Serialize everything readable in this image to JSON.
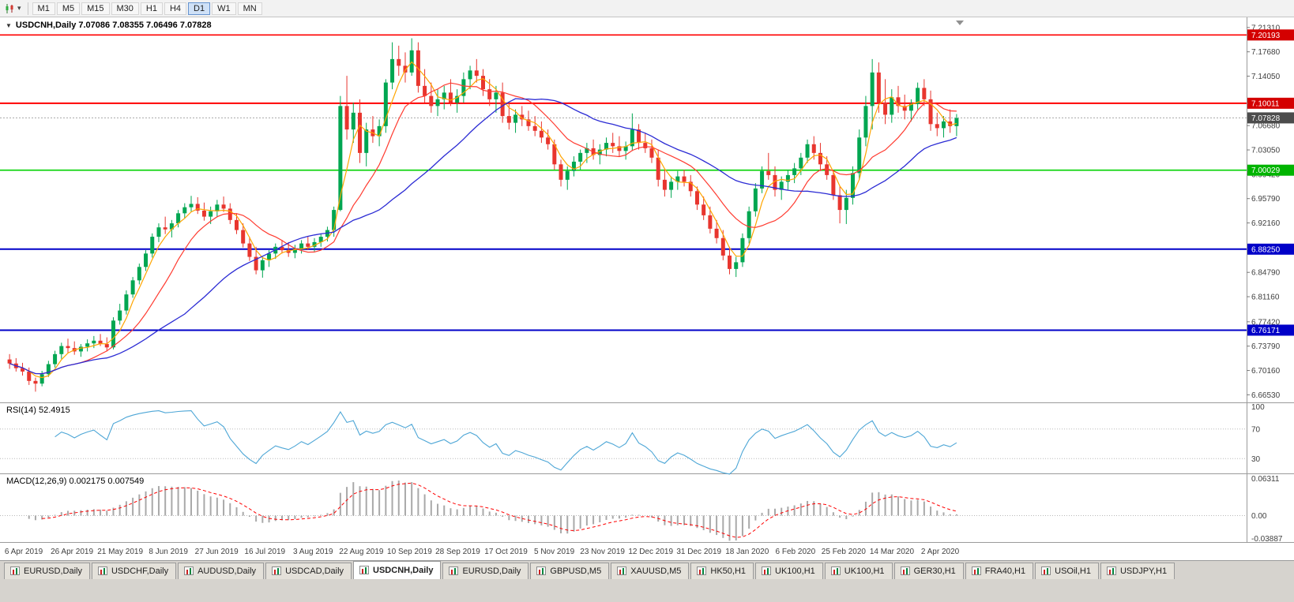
{
  "toolbar": {
    "timeframes": [
      {
        "label": "M1",
        "active": false
      },
      {
        "label": "M5",
        "active": false
      },
      {
        "label": "M15",
        "active": false
      },
      {
        "label": "M30",
        "active": false
      },
      {
        "label": "H1",
        "active": false
      },
      {
        "label": "H4",
        "active": false
      },
      {
        "label": "D1",
        "active": true
      },
      {
        "label": "W1",
        "active": false
      },
      {
        "label": "MN",
        "active": false
      }
    ]
  },
  "chart": {
    "title": "USDCNH,Daily 7.07086 7.08355 7.06496 7.07828",
    "symbol": "USDCNH",
    "period": "Daily"
  },
  "chart_data": {
    "type": "candlestick",
    "symbol": "USDCNH",
    "timeframe": "Daily",
    "last_bar": {
      "open": "7.07086",
      "high": "7.08355",
      "low": "7.06496",
      "close": "7.07828"
    },
    "colors": {
      "up": "#00A651",
      "down": "#E8352E",
      "axis_text": "#3f3f3f",
      "background": "#ffffff"
    },
    "y_ticks": [
      "7.21310",
      "7.17680",
      "7.14050",
      "7.06680",
      "7.03050",
      "6.99420",
      "6.95790",
      "6.92160",
      "6.84790",
      "6.81160",
      "6.77420",
      "6.73790",
      "6.70160",
      "6.66530"
    ],
    "y_range": [
      6.654,
      7.2235
    ],
    "horizontal_lines": [
      {
        "price": 7.20193,
        "color": "#FF0000",
        "width": 1.6,
        "style": "solid",
        "badge": "7.20193",
        "badge_color": "#D40000"
      },
      {
        "price": 7.10011,
        "color": "#FF0000",
        "width": 2,
        "style": "solid",
        "badge": "7.10011",
        "badge_color": "#D40000"
      },
      {
        "price": 7.07828,
        "color": "#a8a8a8",
        "width": 1,
        "style": "dotted",
        "badge": "7.07828",
        "badge_color": "#4c4c4c"
      },
      {
        "price": 7.00029,
        "color": "#00D200",
        "width": 1.6,
        "style": "solid",
        "badge": "7.00029",
        "badge_color": "#00B400"
      },
      {
        "price": 6.8825,
        "color": "#0000C8",
        "width": 2,
        "style": "solid",
        "badge": "6.88250",
        "badge_color": "#0000C8"
      },
      {
        "price": 6.76171,
        "color": "#0000C8",
        "width": 2,
        "style": "solid",
        "badge": "6.76171",
        "badge_color": "#0000C8"
      }
    ],
    "x_tick_labels": [
      "6 Apr 2019",
      "26 Apr 2019",
      "21 May 2019",
      "8 Jun 2019",
      "27 Jun 2019",
      "16 Jul 2019",
      "3 Aug 2019",
      "22 Aug 2019",
      "10 Sep 2019",
      "28 Sep 2019",
      "17 Oct 2019",
      "5 Nov 2019",
      "23 Nov 2019",
      "12 Dec 2019",
      "31 Dec 2019",
      "18 Jan 2020",
      "6 Feb 2020",
      "25 Feb 2020",
      "14 Mar 2020",
      "2 Apr 2020"
    ],
    "moving_averages": [
      {
        "period": 4,
        "color": "#FFA500",
        "width": 1.2
      },
      {
        "period": 11,
        "color": "#FF3B30",
        "width": 1.2
      },
      {
        "period": 28,
        "color": "#2B2BD4",
        "width": 1.3
      }
    ],
    "indicators": {
      "rsi": {
        "name": "RSI",
        "label": "RSI(14) 52.4915",
        "params": [
          14
        ],
        "value": "52.4915",
        "levels": [
          100,
          70,
          30
        ],
        "color": "#4DA6D6",
        "range": [
          10,
          105
        ],
        "calc_period": 7
      },
      "macd": {
        "name": "MACD",
        "label": "MACD(12,26,9) 0.002175 0.007549",
        "params": [
          12,
          26,
          9
        ],
        "values": [
          "0.002175",
          "0.007549"
        ],
        "axis_labels": [
          "0.06311",
          "0.00",
          "-0.03887"
        ],
        "histogram_color": "#A9A9A9",
        "signal_color": "#FF0000",
        "range": [
          -0.0405,
          0.0635
        ],
        "calc_fast": 6,
        "calc_slow": 13,
        "calc_signal": 5
      }
    },
    "candles": [
      [
        6.718,
        6.726,
        6.704,
        6.712
      ],
      [
        6.712,
        6.72,
        6.7,
        6.705
      ],
      [
        6.705,
        6.713,
        6.694,
        6.7
      ],
      [
        6.7,
        6.706,
        6.68,
        6.686
      ],
      [
        6.686,
        6.691,
        6.67,
        6.682
      ],
      [
        6.682,
        6.701,
        6.678,
        6.696
      ],
      [
        6.696,
        6.716,
        6.692,
        6.711
      ],
      [
        6.711,
        6.731,
        6.706,
        6.726
      ],
      [
        6.726,
        6.743,
        6.719,
        6.738
      ],
      [
        6.738,
        6.749,
        6.728,
        6.735
      ],
      [
        6.735,
        6.745,
        6.725,
        6.73
      ],
      [
        6.73,
        6.741,
        6.722,
        6.737
      ],
      [
        6.737,
        6.748,
        6.73,
        6.742
      ],
      [
        6.742,
        6.753,
        6.735,
        6.746
      ],
      [
        6.746,
        6.756,
        6.738,
        6.741
      ],
      [
        6.741,
        6.751,
        6.73,
        6.736
      ],
      [
        6.736,
        6.781,
        6.733,
        6.776
      ],
      [
        6.776,
        6.801,
        6.77,
        6.791
      ],
      [
        6.791,
        6.821,
        6.785,
        6.815
      ],
      [
        6.815,
        6.841,
        6.81,
        6.836
      ],
      [
        6.836,
        6.861,
        6.83,
        6.856
      ],
      [
        6.856,
        6.881,
        6.85,
        6.876
      ],
      [
        6.876,
        6.906,
        6.87,
        6.901
      ],
      [
        6.901,
        6.921,
        6.893,
        6.915
      ],
      [
        6.915,
        6.931,
        6.905,
        6.912
      ],
      [
        6.912,
        6.926,
        6.9,
        6.921
      ],
      [
        6.921,
        6.941,
        6.915,
        6.936
      ],
      [
        6.936,
        6.951,
        6.928,
        6.945
      ],
      [
        6.945,
        6.962,
        6.938,
        6.95
      ],
      [
        6.95,
        6.96,
        6.935,
        6.94
      ],
      [
        6.94,
        6.952,
        6.925,
        6.931
      ],
      [
        6.931,
        6.946,
        6.92,
        6.939
      ],
      [
        6.939,
        6.956,
        6.93,
        6.949
      ],
      [
        6.949,
        6.961,
        6.938,
        6.943
      ],
      [
        6.943,
        6.951,
        6.92,
        6.926
      ],
      [
        6.926,
        6.936,
        6.905,
        6.911
      ],
      [
        6.911,
        6.921,
        6.885,
        6.891
      ],
      [
        6.891,
        6.901,
        6.865,
        6.871
      ],
      [
        6.871,
        6.886,
        6.845,
        6.851
      ],
      [
        6.851,
        6.871,
        6.84,
        6.866
      ],
      [
        6.866,
        6.881,
        6.856,
        6.876
      ],
      [
        6.876,
        6.891,
        6.868,
        6.886
      ],
      [
        6.886,
        6.896,
        6.876,
        6.881
      ],
      [
        6.881,
        6.893,
        6.871,
        6.877
      ],
      [
        6.877,
        6.889,
        6.869,
        6.883
      ],
      [
        6.883,
        6.896,
        6.876,
        6.891
      ],
      [
        6.891,
        6.901,
        6.881,
        6.886
      ],
      [
        6.886,
        6.899,
        6.879,
        6.893
      ],
      [
        6.893,
        6.906,
        6.886,
        6.901
      ],
      [
        6.901,
        6.916,
        6.894,
        6.911
      ],
      [
        6.911,
        6.946,
        6.901,
        6.941
      ],
      [
        6.941,
        7.111,
        6.939,
        7.096
      ],
      [
        7.096,
        7.141,
        7.046,
        7.061
      ],
      [
        7.061,
        7.101,
        7.041,
        7.086
      ],
      [
        7.086,
        7.106,
        7.011,
        7.026
      ],
      [
        7.026,
        7.071,
        7.006,
        7.061
      ],
      [
        7.061,
        7.081,
        7.041,
        7.051
      ],
      [
        7.051,
        7.076,
        7.036,
        7.066
      ],
      [
        7.066,
        7.136,
        7.056,
        7.131
      ],
      [
        7.131,
        7.191,
        7.121,
        7.166
      ],
      [
        7.166,
        7.186,
        7.141,
        7.156
      ],
      [
        7.156,
        7.176,
        7.131,
        7.146
      ],
      [
        7.146,
        7.197,
        7.141,
        7.179
      ],
      [
        7.179,
        7.191,
        7.116,
        7.126
      ],
      [
        7.126,
        7.151,
        7.101,
        7.111
      ],
      [
        7.111,
        7.131,
        7.086,
        7.096
      ],
      [
        7.096,
        7.121,
        7.081,
        7.106
      ],
      [
        7.106,
        7.126,
        7.091,
        7.116
      ],
      [
        7.116,
        7.136,
        7.096,
        7.101
      ],
      [
        7.101,
        7.121,
        7.086,
        7.111
      ],
      [
        7.111,
        7.146,
        7.101,
        7.136
      ],
      [
        7.136,
        7.156,
        7.121,
        7.149
      ],
      [
        7.149,
        7.166,
        7.131,
        7.141
      ],
      [
        7.141,
        7.151,
        7.111,
        7.121
      ],
      [
        7.121,
        7.136,
        7.096,
        7.106
      ],
      [
        7.106,
        7.126,
        7.086,
        7.116
      ],
      [
        7.116,
        7.131,
        7.071,
        7.081
      ],
      [
        7.081,
        7.101,
        7.061,
        7.071
      ],
      [
        7.071,
        7.091,
        7.056,
        7.083
      ],
      [
        7.083,
        7.096,
        7.066,
        7.076
      ],
      [
        7.076,
        7.089,
        7.059,
        7.066
      ],
      [
        7.066,
        7.081,
        7.051,
        7.059
      ],
      [
        7.059,
        7.073,
        7.041,
        7.049
      ],
      [
        7.049,
        7.061,
        7.031,
        7.039
      ],
      [
        7.039,
        7.046,
        7.001,
        7.009
      ],
      [
        7.009,
        7.016,
        6.976,
        6.986
      ],
      [
        6.986,
        7.006,
        6.971,
        6.999
      ],
      [
        6.999,
        7.021,
        6.991,
        7.013
      ],
      [
        7.013,
        7.031,
        7.001,
        7.026
      ],
      [
        7.026,
        7.041,
        7.011,
        7.033
      ],
      [
        7.033,
        7.046,
        7.016,
        7.023
      ],
      [
        7.023,
        7.039,
        7.009,
        7.031
      ],
      [
        7.031,
        7.049,
        7.021,
        7.041
      ],
      [
        7.041,
        7.056,
        7.026,
        7.036
      ],
      [
        7.036,
        7.051,
        7.021,
        7.029
      ],
      [
        7.029,
        7.043,
        7.016,
        7.036
      ],
      [
        7.036,
        7.085,
        7.029,
        7.061
      ],
      [
        7.061,
        7.069,
        7.031,
        7.041
      ],
      [
        7.041,
        7.056,
        7.026,
        7.033
      ],
      [
        7.033,
        7.046,
        7.011,
        7.019
      ],
      [
        7.019,
        7.031,
        6.976,
        6.986
      ],
      [
        6.986,
        7.001,
        6.961,
        6.971
      ],
      [
        6.971,
        6.991,
        6.959,
        6.983
      ],
      [
        6.983,
        6.999,
        6.971,
        6.991
      ],
      [
        6.991,
        7.001,
        6.976,
        6.983
      ],
      [
        6.983,
        6.993,
        6.961,
        6.969
      ],
      [
        6.969,
        6.976,
        6.941,
        6.949
      ],
      [
        6.949,
        6.961,
        6.926,
        6.933
      ],
      [
        6.933,
        6.946,
        6.906,
        6.913
      ],
      [
        6.913,
        6.926,
        6.891,
        6.899
      ],
      [
        6.899,
        6.911,
        6.866,
        6.873
      ],
      [
        6.873,
        6.886,
        6.845,
        6.853
      ],
      [
        6.853,
        6.871,
        6.841,
        6.863
      ],
      [
        6.863,
        6.906,
        6.856,
        6.899
      ],
      [
        6.899,
        6.946,
        6.891,
        6.939
      ],
      [
        6.939,
        6.981,
        6.931,
        6.973
      ],
      [
        6.973,
        7.006,
        6.966,
        6.999
      ],
      [
        6.999,
        7.026,
        6.986,
        6.993
      ],
      [
        6.993,
        7.006,
        6.961,
        6.971
      ],
      [
        6.971,
        6.991,
        6.956,
        6.983
      ],
      [
        6.983,
        7.001,
        6.971,
        6.993
      ],
      [
        6.993,
        7.011,
        6.981,
        7.003
      ],
      [
        7.003,
        7.026,
        6.993,
        7.019
      ],
      [
        7.019,
        7.046,
        7.011,
        7.039
      ],
      [
        7.039,
        7.051,
        7.016,
        7.026
      ],
      [
        7.026,
        7.041,
        6.999,
        7.009
      ],
      [
        7.009,
        7.021,
        6.986,
        6.993
      ],
      [
        6.993,
        7.001,
        6.956,
        6.963
      ],
      [
        6.963,
        6.976,
        6.921,
        6.941
      ],
      [
        6.941,
        6.971,
        6.92,
        6.959
      ],
      [
        6.959,
        7.006,
        6.949,
        6.996
      ],
      [
        6.996,
        7.061,
        6.986,
        7.049
      ],
      [
        7.049,
        7.111,
        7.036,
        7.096
      ],
      [
        7.096,
        7.166,
        7.061,
        7.146
      ],
      [
        7.146,
        7.161,
        7.086,
        7.101
      ],
      [
        7.101,
        7.136,
        7.069,
        7.083
      ],
      [
        7.083,
        7.121,
        7.071,
        7.109
      ],
      [
        7.109,
        7.126,
        7.086,
        7.096
      ],
      [
        7.096,
        7.113,
        7.076,
        7.089
      ],
      [
        7.089,
        7.106,
        7.073,
        7.099
      ],
      [
        7.099,
        7.131,
        7.091,
        7.123
      ],
      [
        7.123,
        7.136,
        7.096,
        7.106
      ],
      [
        7.106,
        7.119,
        7.059,
        7.069
      ],
      [
        7.069,
        7.086,
        7.051,
        7.063
      ],
      [
        7.063,
        7.081,
        7.049,
        7.073
      ],
      [
        7.073,
        7.091,
        7.056,
        7.066
      ],
      [
        7.066,
        7.084,
        7.051,
        7.078
      ]
    ]
  },
  "tabs": {
    "active_index": 4,
    "items": [
      "EURUSD,Daily",
      "USDCHF,Daily",
      "AUDUSD,Daily",
      "USDCAD,Daily",
      "USDCNH,Daily",
      "EURUSD,Daily",
      "GBPUSD,M5",
      "XAUUSD,M5",
      "HK50,H1",
      "UK100,H1",
      "UK100,H1",
      "GER30,H1",
      "FRA40,H1",
      "USOil,H1",
      "USDJPY,H1"
    ]
  }
}
